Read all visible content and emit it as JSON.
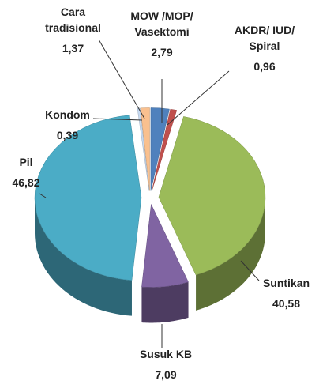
{
  "chart_data": {
    "type": "pie",
    "categories": [
      "MOW /MOP/ Vasektomi",
      "AKDR/ IUD/ Spiral",
      "Suntikan",
      "Susuk KB",
      "Pil",
      "Kondom",
      "Cara tradisional"
    ],
    "values": [
      2.79,
      0.96,
      40.58,
      7.09,
      46.82,
      0.39,
      1.37
    ],
    "value_labels": [
      "2,79",
      "0,96",
      "40,58",
      "7,09",
      "46,82",
      "0,39",
      "1,37"
    ],
    "colors": [
      "#4f81bd",
      "#c0504d",
      "#9bbb59",
      "#8064a2",
      "#4bacc6",
      "#c6d9f1",
      "#f9c08f"
    ]
  }
}
